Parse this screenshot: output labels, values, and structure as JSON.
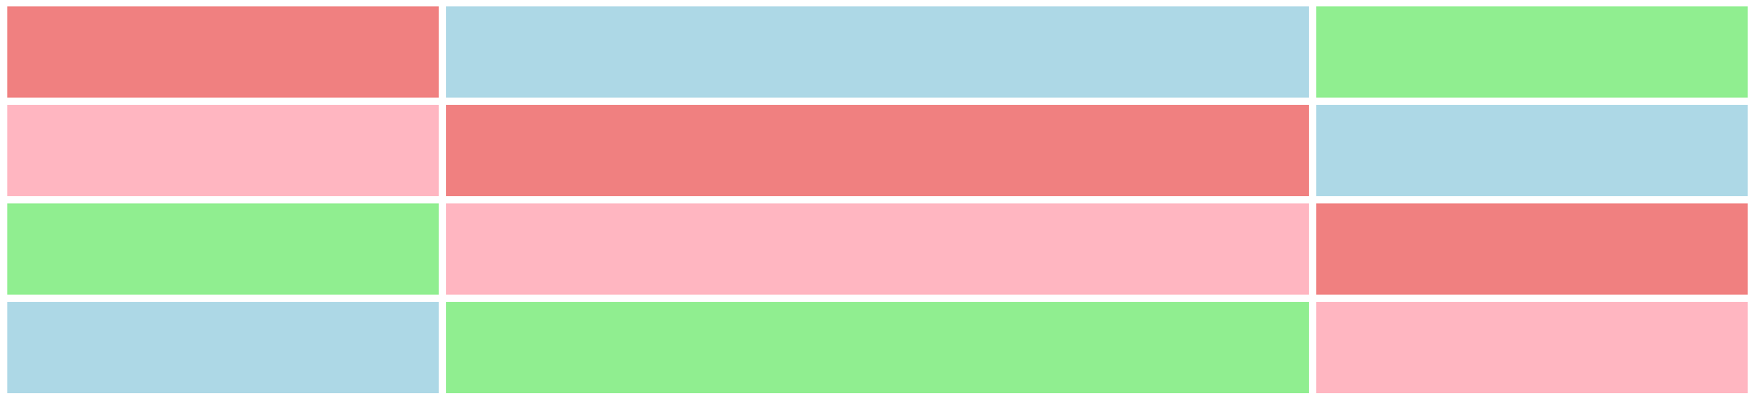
{
  "palette": {
    "coral": "#F08080",
    "light_blue": "#ADD8E6",
    "light_green": "#90EE90",
    "pink": "#FFB6C1"
  },
  "rows": [
    [
      "coral",
      "light_blue",
      "light_green"
    ],
    [
      "pink",
      "coral",
      "light_blue"
    ],
    [
      "light_green",
      "pink",
      "coral"
    ],
    [
      "light_blue",
      "light_green",
      "pink"
    ]
  ]
}
